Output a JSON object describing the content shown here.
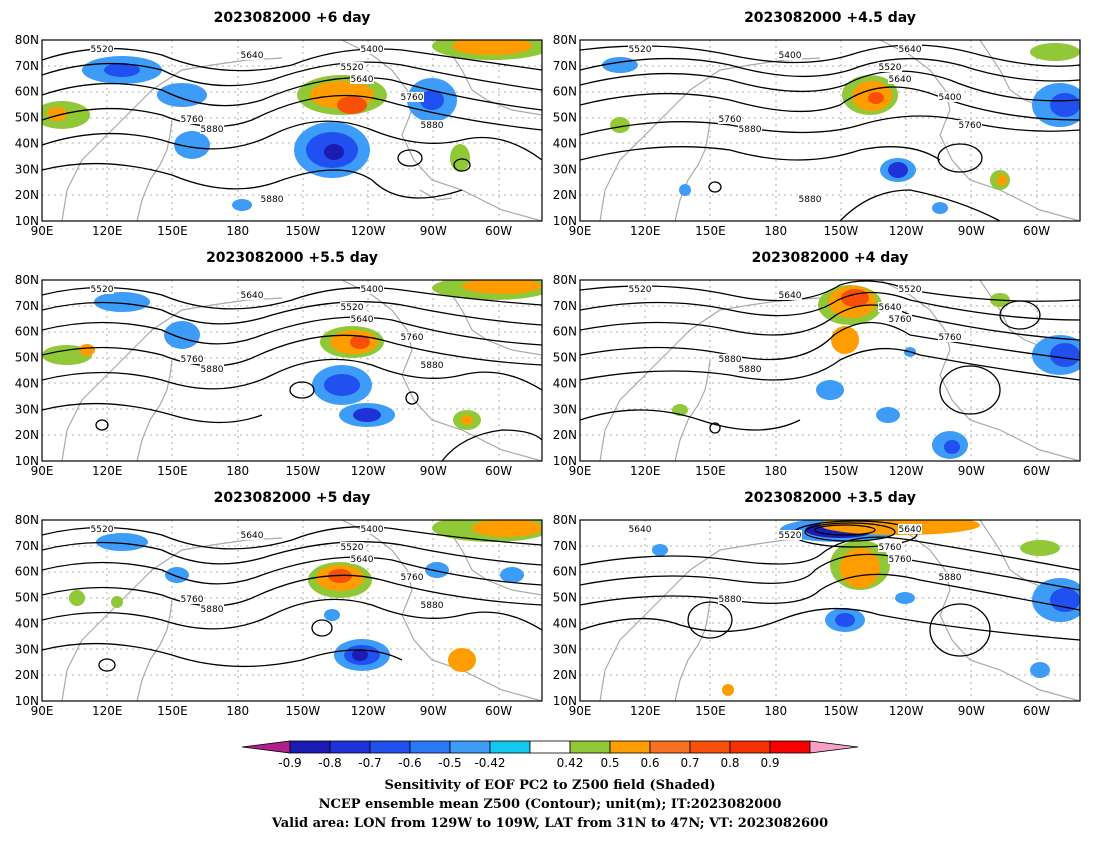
{
  "panels": [
    {
      "title": "2023082000  +6 day"
    },
    {
      "title": "2023082000  +4.5  day"
    },
    {
      "title": "2023082000  +5.5  day"
    },
    {
      "title": "2023082000  +4  day"
    },
    {
      "title": "2023082000  +5  day"
    },
    {
      "title": "2023082000  +3.5  day"
    }
  ],
  "x_ticks": [
    "90E",
    "120E",
    "150E",
    "180",
    "150W",
    "120W",
    "90W",
    "60W"
  ],
  "y_ticks": [
    "10N",
    "20N",
    "30N",
    "40N",
    "50N",
    "60N",
    "70N",
    "80N"
  ],
  "map_extent": {
    "lon_min_east": 90,
    "lon_max_east": 320,
    "lat_min": 10,
    "lat_max": 80
  },
  "colorbar": {
    "colors": [
      "#b0208c",
      "#1c1cb4",
      "#1e32d8",
      "#2050f0",
      "#2878f8",
      "#3c9cf8",
      "#10c8f0",
      "#ffffff",
      "#90c838",
      "#ff9c00",
      "#f87020",
      "#f85008",
      "#f83000",
      "#f80000",
      "#f8a0c8"
    ],
    "labels": [
      "-0.9",
      "-0.8",
      "-0.7",
      "-0.6",
      "-0.5",
      "-0.42",
      "0.42",
      "0.5",
      "0.6",
      "0.7",
      "0.8",
      "0.9"
    ]
  },
  "caption": {
    "line1": "Sensitivity of EOF PC2 to Z500 field (Shaded)",
    "line2": "NCEP ensemble mean Z500 (Contour); unit(m); IT:2023082000",
    "line3": "Valid area: LON from 129W to 109W, LAT from 31N to 47N; VT: 2023082600"
  },
  "contour_labels": [
    [
      "5520",
      "5640",
      "5400",
      "5520",
      "5640",
      "5760",
      "5760",
      "5880",
      "5880",
      "5880"
    ],
    [
      "5520",
      "5400",
      "5640",
      "5520",
      "5640",
      "5400",
      "5760",
      "5880",
      "5760",
      "5880"
    ],
    [
      "5520",
      "5640",
      "5400",
      "5520",
      "5640",
      "5760",
      "5760",
      "5880",
      "5880"
    ],
    [
      "5520",
      "5640",
      "5520",
      "5640",
      "5760",
      "5760",
      "5880",
      "5880"
    ],
    [
      "5520",
      "5640",
      "5400",
      "5520",
      "5640",
      "5760",
      "5760",
      "5880",
      "5880"
    ],
    [
      "5640",
      "5520",
      "5640",
      "5760",
      "5760",
      "5880",
      "5880"
    ]
  ]
}
